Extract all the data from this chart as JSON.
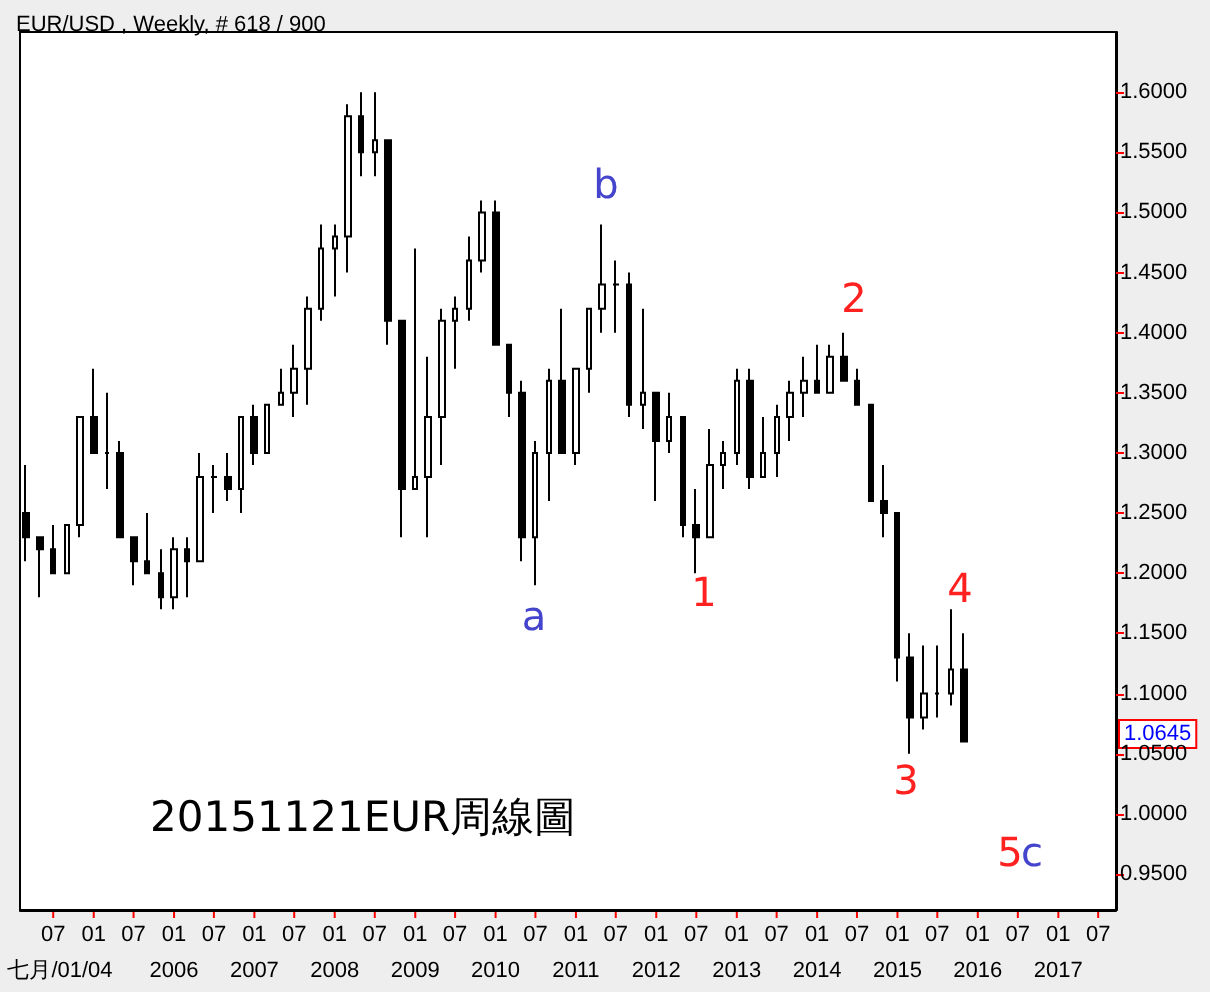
{
  "chart_data": {
    "type": "candlestick",
    "title": "EUR/USD , Weekly, # 618 / 900",
    "x": [
      "2004-03",
      "2004-05",
      "2004-07",
      "2004-09",
      "2004-11",
      "2005-01",
      "2005-03",
      "2005-05",
      "2005-07",
      "2005-09",
      "2005-11",
      "2006-01",
      "2006-03",
      "2006-05",
      "2006-07",
      "2006-09",
      "2006-11",
      "2007-01",
      "2007-03",
      "2007-05",
      "2007-07",
      "2007-09",
      "2007-11",
      "2008-01",
      "2008-03",
      "2008-05",
      "2008-07",
      "2008-09",
      "2008-11",
      "2009-01",
      "2009-03",
      "2009-05",
      "2009-07",
      "2009-09",
      "2009-11",
      "2010-01",
      "2010-03",
      "2010-05",
      "2010-07",
      "2010-09",
      "2010-11",
      "2011-01",
      "2011-03",
      "2011-05",
      "2011-07",
      "2011-09",
      "2011-11",
      "2012-01",
      "2012-03",
      "2012-05",
      "2012-07",
      "2012-09",
      "2012-11",
      "2013-01",
      "2013-03",
      "2013-05",
      "2013-07",
      "2013-09",
      "2013-11",
      "2014-01",
      "2014-03",
      "2014-05",
      "2014-07",
      "2014-09",
      "2014-11",
      "2015-01",
      "2015-03",
      "2015-05",
      "2015-07",
      "2015-09",
      "2015-11"
    ],
    "ohlc": [
      [
        1.25,
        1.29,
        1.21,
        1.23
      ],
      [
        1.23,
        1.23,
        1.18,
        1.22
      ],
      [
        1.22,
        1.24,
        1.2,
        1.2
      ],
      [
        1.2,
        1.24,
        1.2,
        1.24
      ],
      [
        1.24,
        1.33,
        1.23,
        1.33
      ],
      [
        1.33,
        1.37,
        1.3,
        1.3
      ],
      [
        1.3,
        1.35,
        1.27,
        1.3
      ],
      [
        1.3,
        1.31,
        1.23,
        1.23
      ],
      [
        1.23,
        1.23,
        1.19,
        1.21
      ],
      [
        1.21,
        1.25,
        1.2,
        1.2
      ],
      [
        1.2,
        1.22,
        1.17,
        1.18
      ],
      [
        1.18,
        1.23,
        1.17,
        1.22
      ],
      [
        1.22,
        1.23,
        1.18,
        1.21
      ],
      [
        1.21,
        1.3,
        1.21,
        1.28
      ],
      [
        1.28,
        1.29,
        1.25,
        1.28
      ],
      [
        1.28,
        1.3,
        1.26,
        1.27
      ],
      [
        1.27,
        1.33,
        1.25,
        1.33
      ],
      [
        1.33,
        1.34,
        1.29,
        1.3
      ],
      [
        1.3,
        1.34,
        1.3,
        1.34
      ],
      [
        1.34,
        1.37,
        1.34,
        1.35
      ],
      [
        1.35,
        1.39,
        1.33,
        1.37
      ],
      [
        1.37,
        1.43,
        1.34,
        1.42
      ],
      [
        1.42,
        1.49,
        1.41,
        1.47
      ],
      [
        1.47,
        1.49,
        1.43,
        1.48
      ],
      [
        1.48,
        1.59,
        1.45,
        1.58
      ],
      [
        1.58,
        1.6,
        1.53,
        1.55
      ],
      [
        1.55,
        1.6,
        1.53,
        1.56
      ],
      [
        1.56,
        1.56,
        1.39,
        1.41
      ],
      [
        1.41,
        1.41,
        1.23,
        1.27
      ],
      [
        1.27,
        1.47,
        1.27,
        1.28
      ],
      [
        1.28,
        1.38,
        1.23,
        1.33
      ],
      [
        1.33,
        1.42,
        1.29,
        1.41
      ],
      [
        1.41,
        1.43,
        1.37,
        1.42
      ],
      [
        1.42,
        1.48,
        1.41,
        1.46
      ],
      [
        1.46,
        1.51,
        1.45,
        1.5
      ],
      [
        1.5,
        1.51,
        1.39,
        1.39
      ],
      [
        1.39,
        1.39,
        1.33,
        1.35
      ],
      [
        1.35,
        1.36,
        1.21,
        1.23
      ],
      [
        1.23,
        1.31,
        1.19,
        1.3
      ],
      [
        1.3,
        1.37,
        1.26,
        1.36
      ],
      [
        1.36,
        1.42,
        1.3,
        1.3
      ],
      [
        1.3,
        1.37,
        1.29,
        1.37
      ],
      [
        1.37,
        1.42,
        1.35,
        1.42
      ],
      [
        1.42,
        1.49,
        1.4,
        1.44
      ],
      [
        1.44,
        1.46,
        1.4,
        1.44
      ],
      [
        1.44,
        1.45,
        1.33,
        1.34
      ],
      [
        1.34,
        1.42,
        1.32,
        1.35
      ],
      [
        1.35,
        1.35,
        1.26,
        1.31
      ],
      [
        1.31,
        1.35,
        1.3,
        1.33
      ],
      [
        1.33,
        1.33,
        1.23,
        1.24
      ],
      [
        1.24,
        1.27,
        1.2,
        1.23
      ],
      [
        1.23,
        1.32,
        1.23,
        1.29
      ],
      [
        1.29,
        1.31,
        1.27,
        1.3
      ],
      [
        1.3,
        1.37,
        1.29,
        1.36
      ],
      [
        1.36,
        1.37,
        1.27,
        1.28
      ],
      [
        1.28,
        1.33,
        1.28,
        1.3
      ],
      [
        1.3,
        1.34,
        1.28,
        1.33
      ],
      [
        1.33,
        1.36,
        1.31,
        1.35
      ],
      [
        1.35,
        1.38,
        1.33,
        1.36
      ],
      [
        1.36,
        1.39,
        1.35,
        1.35
      ],
      [
        1.35,
        1.39,
        1.35,
        1.38
      ],
      [
        1.38,
        1.4,
        1.36,
        1.36
      ],
      [
        1.36,
        1.37,
        1.34,
        1.34
      ],
      [
        1.34,
        1.34,
        1.26,
        1.26
      ],
      [
        1.26,
        1.29,
        1.23,
        1.25
      ],
      [
        1.25,
        1.25,
        1.11,
        1.13
      ],
      [
        1.13,
        1.15,
        1.05,
        1.08
      ],
      [
        1.08,
        1.14,
        1.07,
        1.1
      ],
      [
        1.1,
        1.14,
        1.08,
        1.1
      ],
      [
        1.1,
        1.17,
        1.09,
        1.12
      ],
      [
        1.12,
        1.15,
        1.06,
        1.06
      ]
    ],
    "color": "#000000",
    "xlim": [
      "2004-02-01",
      "2017-09-20"
    ],
    "xticks": [
      {
        "value": "2004-07",
        "label": "07\n七月/01/04"
      },
      {
        "value": "2005-01",
        "label": "01"
      },
      {
        "value": "2005-07",
        "label": "07"
      },
      {
        "value": "2006-01",
        "label": "01\n2006"
      },
      {
        "value": "2006-07",
        "label": "07"
      },
      {
        "value": "2007-01",
        "label": "01\n2007"
      },
      {
        "value": "2007-07",
        "label": "07"
      },
      {
        "value": "2008-01",
        "label": "01\n2008"
      },
      {
        "value": "2008-07",
        "label": "07"
      },
      {
        "value": "2009-01",
        "label": "01\n2009"
      },
      {
        "value": "2009-07",
        "label": "07"
      },
      {
        "value": "2010-01",
        "label": "01\n2010"
      },
      {
        "value": "2010-07",
        "label": "07"
      },
      {
        "value": "2011-01",
        "label": "01\n2011"
      },
      {
        "value": "2011-07",
        "label": "07"
      },
      {
        "value": "2012-01",
        "label": "01\n2012"
      },
      {
        "value": "2012-07",
        "label": "07"
      },
      {
        "value": "2013-01",
        "label": "01\n2013"
      },
      {
        "value": "2013-07",
        "label": "07"
      },
      {
        "value": "2014-01",
        "label": "01\n2014"
      },
      {
        "value": "2014-07",
        "label": "07"
      },
      {
        "value": "2015-01",
        "label": "01\n2015"
      },
      {
        "value": "2015-07",
        "label": "07"
      },
      {
        "value": "2016-01",
        "label": "01\n2016"
      },
      {
        "value": "2016-07",
        "label": "07"
      },
      {
        "value": "2017-01",
        "label": "01\n2017"
      },
      {
        "value": "2017-07",
        "label": "07"
      }
    ],
    "ylim": [
      0.92,
      1.65
    ],
    "yticks": [
      {
        "value": 0.95,
        "label": "0.9500"
      },
      {
        "value": 1.0,
        "label": "1.0000"
      },
      {
        "value": 1.05,
        "label": "1.0500"
      },
      {
        "value": 1.1,
        "label": "1.1000"
      },
      {
        "value": 1.15,
        "label": "1.1500"
      },
      {
        "value": 1.2,
        "label": "1.2000"
      },
      {
        "value": 1.25,
        "label": "1.2500"
      },
      {
        "value": 1.3,
        "label": "1.3000"
      },
      {
        "value": 1.35,
        "label": "1.3500"
      },
      {
        "value": 1.4,
        "label": "1.4000"
      },
      {
        "value": 1.45,
        "label": "1.4500"
      },
      {
        "value": 1.5,
        "label": "1.5000"
      },
      {
        "value": 1.55,
        "label": "1.5500"
      },
      {
        "value": 1.6,
        "label": "1.6000"
      }
    ],
    "grid": false,
    "annotations": [
      "a",
      "b",
      "1",
      "2",
      "3",
      "4",
      "5",
      "c",
      "1.0645",
      "20151121EUR周線圖"
    ]
  }
}
